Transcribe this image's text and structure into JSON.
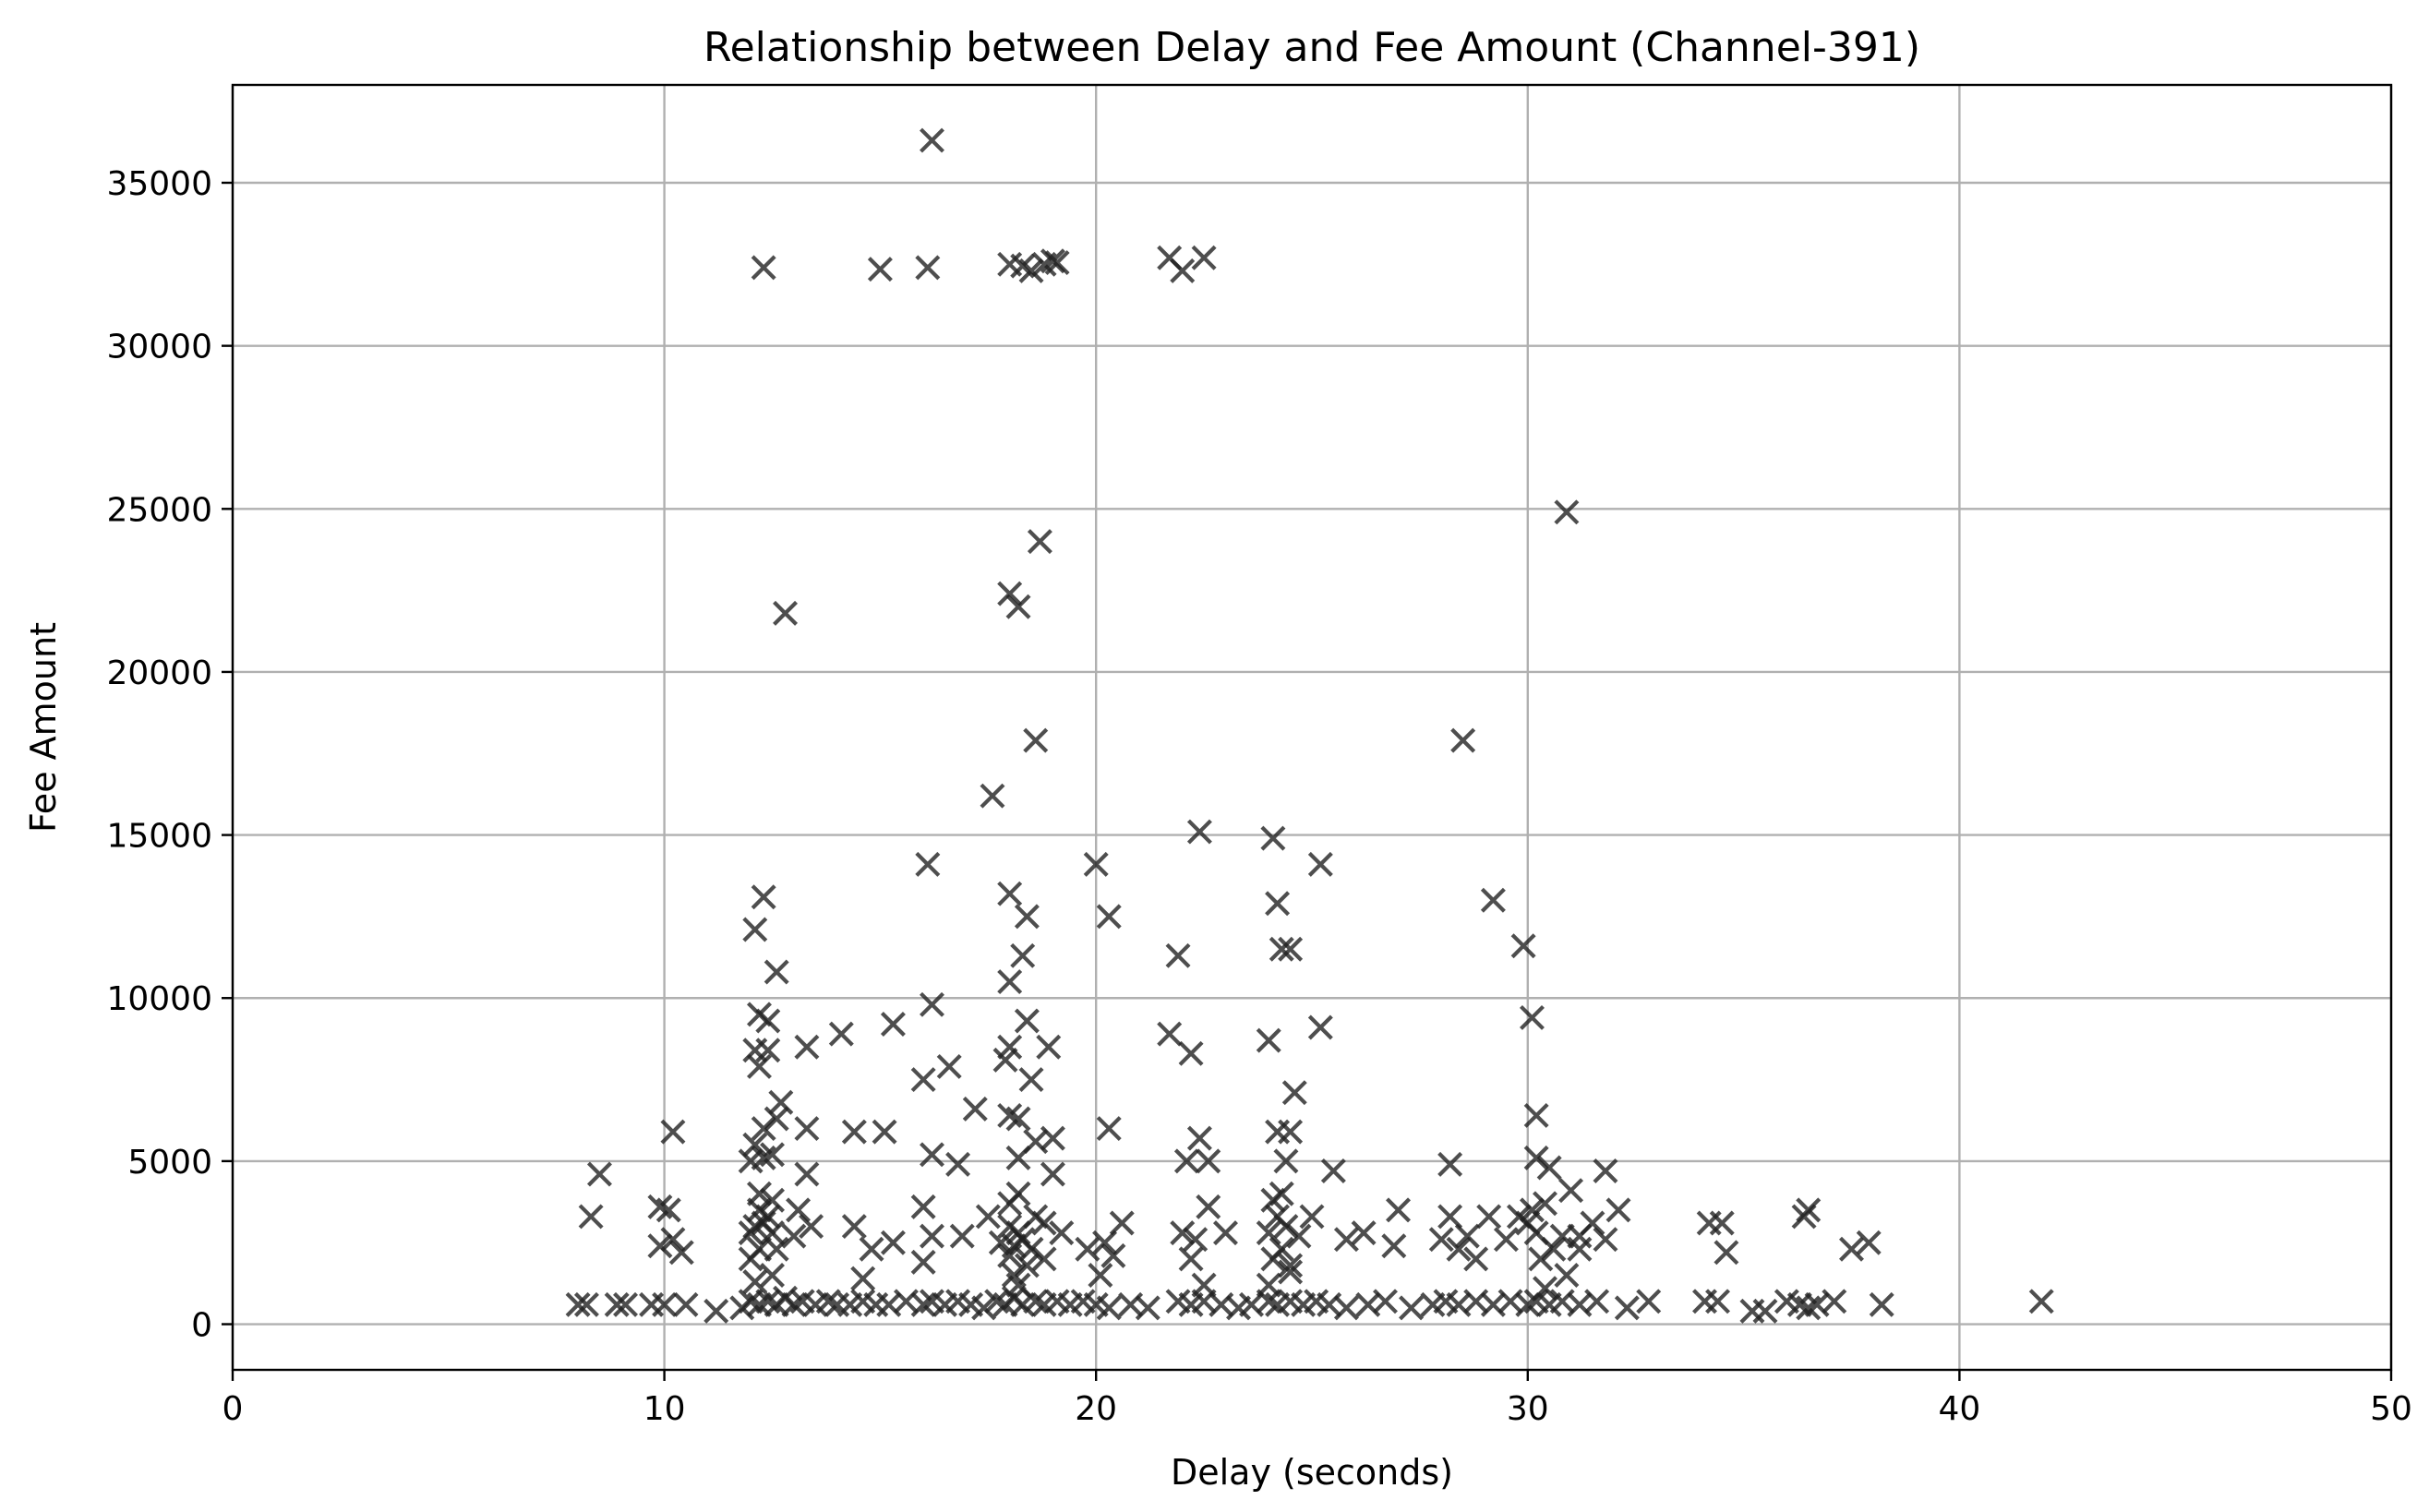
{
  "chart_data": {
    "type": "scatter",
    "title": "Relationship between Delay and Fee Amount (Channel-391)",
    "xlabel": "Delay (seconds)",
    "ylabel": "Fee Amount",
    "xlim": [
      0,
      50
    ],
    "ylim": [
      -1400,
      38000
    ],
    "xticks": [
      0,
      10,
      20,
      30,
      40,
      50
    ],
    "yticks": [
      0,
      5000,
      10000,
      15000,
      20000,
      25000,
      30000,
      35000
    ],
    "xtick_labels": [
      "0",
      "10",
      "20",
      "30",
      "40",
      "50"
    ],
    "ytick_labels": [
      "0",
      "5000",
      "10000",
      "15000",
      "20000",
      "25000",
      "30000",
      "35000"
    ],
    "grid": true,
    "marker": "x",
    "marker_color": "#222222",
    "series": [
      {
        "points": [
          [
            16.2,
            36300
          ],
          [
            12.3,
            32400
          ],
          [
            15.0,
            32350
          ],
          [
            16.1,
            32400
          ],
          [
            18.0,
            32500
          ],
          [
            18.3,
            32450
          ],
          [
            18.5,
            32300
          ],
          [
            18.8,
            32500
          ],
          [
            19.0,
            32600
          ],
          [
            19.1,
            32550
          ],
          [
            21.7,
            32700
          ],
          [
            22.0,
            32300
          ],
          [
            22.5,
            32700
          ],
          [
            30.9,
            24900
          ],
          [
            18.7,
            24000
          ],
          [
            18.0,
            22400
          ],
          [
            18.2,
            22000
          ],
          [
            12.8,
            21800
          ],
          [
            28.5,
            17900
          ],
          [
            18.6,
            17900
          ],
          [
            17.6,
            16200
          ],
          [
            22.4,
            15100
          ],
          [
            24.1,
            14900
          ],
          [
            25.2,
            14100
          ],
          [
            16.1,
            14100
          ],
          [
            20.0,
            14100
          ],
          [
            12.3,
            13100
          ],
          [
            18.0,
            13200
          ],
          [
            29.2,
            13000
          ],
          [
            24.2,
            12900
          ],
          [
            18.4,
            12500
          ],
          [
            20.3,
            12500
          ],
          [
            12.1,
            12100
          ],
          [
            29.9,
            11600
          ],
          [
            24.3,
            11500
          ],
          [
            24.5,
            11500
          ],
          [
            18.3,
            11300
          ],
          [
            21.9,
            11300
          ],
          [
            12.6,
            10800
          ],
          [
            18.0,
            10500
          ],
          [
            16.2,
            9800
          ],
          [
            12.2,
            9500
          ],
          [
            12.4,
            9300
          ],
          [
            30.1,
            9400
          ],
          [
            25.2,
            9100
          ],
          [
            15.3,
            9200
          ],
          [
            18.4,
            9300
          ],
          [
            14.1,
            8900
          ],
          [
            21.7,
            8900
          ],
          [
            24.0,
            8700
          ],
          [
            12.1,
            8400
          ],
          [
            12.4,
            8400
          ],
          [
            13.3,
            8500
          ],
          [
            18.0,
            8500
          ],
          [
            18.9,
            8500
          ],
          [
            22.2,
            8300
          ],
          [
            12.2,
            7900
          ],
          [
            16.6,
            7900
          ],
          [
            17.9,
            8100
          ],
          [
            16.0,
            7500
          ],
          [
            18.5,
            7500
          ],
          [
            24.6,
            7100
          ],
          [
            12.7,
            6800
          ],
          [
            17.2,
            6600
          ],
          [
            18.0,
            6400
          ],
          [
            18.2,
            6300
          ],
          [
            30.2,
            6400
          ],
          [
            12.6,
            6300
          ],
          [
            12.3,
            6000
          ],
          [
            13.3,
            6000
          ],
          [
            20.3,
            6000
          ],
          [
            24.2,
            5900
          ],
          [
            10.2,
            5900
          ],
          [
            14.4,
            5900
          ],
          [
            15.1,
            5900
          ],
          [
            24.5,
            5900
          ],
          [
            12.1,
            5500
          ],
          [
            18.6,
            5600
          ],
          [
            19.0,
            5700
          ],
          [
            22.4,
            5700
          ],
          [
            16.2,
            5200
          ],
          [
            12.0,
            5000
          ],
          [
            12.3,
            5100
          ],
          [
            12.5,
            5200
          ],
          [
            16.8,
            4900
          ],
          [
            18.2,
            5100
          ],
          [
            22.1,
            5000
          ],
          [
            22.6,
            5000
          ],
          [
            24.4,
            5000
          ],
          [
            28.2,
            4900
          ],
          [
            30.2,
            5100
          ],
          [
            30.5,
            4800
          ],
          [
            25.5,
            4700
          ],
          [
            31.8,
            4700
          ],
          [
            13.3,
            4600
          ],
          [
            8.5,
            4600
          ],
          [
            19.0,
            4600
          ],
          [
            31.0,
            4100
          ],
          [
            12.2,
            4000
          ],
          [
            18.2,
            4000
          ],
          [
            24.3,
            4000
          ],
          [
            9.9,
            3600
          ],
          [
            10.1,
            3500
          ],
          [
            12.5,
            3800
          ],
          [
            24.1,
            3800
          ],
          [
            18.0,
            3700
          ],
          [
            30.4,
            3700
          ],
          [
            12.2,
            3500
          ],
          [
            13.1,
            3500
          ],
          [
            16.0,
            3600
          ],
          [
            22.6,
            3600
          ],
          [
            27.0,
            3500
          ],
          [
            30.1,
            3500
          ],
          [
            32.1,
            3500
          ],
          [
            36.5,
            3500
          ],
          [
            8.3,
            3300
          ],
          [
            12.4,
            3300
          ],
          [
            17.5,
            3300
          ],
          [
            18.6,
            3300
          ],
          [
            24.2,
            3300
          ],
          [
            25.0,
            3300
          ],
          [
            28.2,
            3300
          ],
          [
            29.1,
            3300
          ],
          [
            29.8,
            3300
          ],
          [
            34.2,
            3100
          ],
          [
            34.5,
            3100
          ],
          [
            36.4,
            3300
          ],
          [
            20.6,
            3100
          ],
          [
            12.1,
            3000
          ],
          [
            12.3,
            3100
          ],
          [
            13.4,
            3000
          ],
          [
            14.4,
            3000
          ],
          [
            18.0,
            3000
          ],
          [
            18.8,
            3100
          ],
          [
            24.4,
            3000
          ],
          [
            30.0,
            3100
          ],
          [
            31.5,
            3100
          ],
          [
            26.2,
            2800
          ],
          [
            12.0,
            2800
          ],
          [
            12.5,
            2800
          ],
          [
            13.0,
            2700
          ],
          [
            16.2,
            2700
          ],
          [
            16.9,
            2700
          ],
          [
            18.2,
            2800
          ],
          [
            18.3,
            2600
          ],
          [
            19.2,
            2800
          ],
          [
            22.0,
            2800
          ],
          [
            23.0,
            2800
          ],
          [
            24.0,
            2800
          ],
          [
            24.7,
            2700
          ],
          [
            28.6,
            2700
          ],
          [
            30.2,
            2800
          ],
          [
            30.8,
            2700
          ],
          [
            31.2,
            2700
          ],
          [
            10.2,
            2600
          ],
          [
            15.3,
            2500
          ],
          [
            17.8,
            2500
          ],
          [
            18.1,
            2400
          ],
          [
            20.2,
            2500
          ],
          [
            22.3,
            2600
          ],
          [
            25.8,
            2600
          ],
          [
            28.0,
            2600
          ],
          [
            29.5,
            2600
          ],
          [
            31.8,
            2600
          ],
          [
            37.9,
            2500
          ],
          [
            9.9,
            2400
          ],
          [
            12.2,
            2300
          ],
          [
            12.6,
            2300
          ],
          [
            14.8,
            2300
          ],
          [
            18.5,
            2300
          ],
          [
            19.8,
            2300
          ],
          [
            24.3,
            2300
          ],
          [
            26.9,
            2400
          ],
          [
            28.4,
            2300
          ],
          [
            30.6,
            2300
          ],
          [
            31.2,
            2300
          ],
          [
            34.6,
            2200
          ],
          [
            37.5,
            2300
          ],
          [
            10.4,
            2200
          ],
          [
            12.0,
            2000
          ],
          [
            18.0,
            2100
          ],
          [
            18.8,
            2000
          ],
          [
            20.4,
            2100
          ],
          [
            22.2,
            2000
          ],
          [
            24.1,
            2000
          ],
          [
            28.8,
            2000
          ],
          [
            30.3,
            2000
          ],
          [
            16.0,
            1900
          ],
          [
            18.4,
            1800
          ],
          [
            24.5,
            1800
          ],
          [
            12.5,
            1500
          ],
          [
            14.6,
            1400
          ],
          [
            18.1,
            1500
          ],
          [
            20.1,
            1500
          ],
          [
            24.5,
            1600
          ],
          [
            30.9,
            1500
          ],
          [
            12.1,
            1300
          ],
          [
            18.2,
            1200
          ],
          [
            22.5,
            1200
          ],
          [
            24.0,
            1200
          ],
          [
            30.4,
            1100
          ],
          [
            8.0,
            600
          ],
          [
            8.2,
            600
          ],
          [
            8.9,
            600
          ],
          [
            9.1,
            600
          ],
          [
            9.7,
            600
          ],
          [
            10.0,
            600
          ],
          [
            10.5,
            600
          ],
          [
            11.2,
            400
          ],
          [
            11.8,
            500
          ],
          [
            12.0,
            700
          ],
          [
            12.2,
            600
          ],
          [
            12.4,
            700
          ],
          [
            12.6,
            600
          ],
          [
            12.8,
            800
          ],
          [
            13.0,
            600
          ],
          [
            13.2,
            700
          ],
          [
            13.5,
            600
          ],
          [
            13.8,
            700
          ],
          [
            14.0,
            600
          ],
          [
            14.3,
            600
          ],
          [
            14.6,
            700
          ],
          [
            14.9,
            600
          ],
          [
            15.2,
            600
          ],
          [
            15.6,
            700
          ],
          [
            16.0,
            600
          ],
          [
            16.2,
            700
          ],
          [
            16.5,
            600
          ],
          [
            16.8,
            700
          ],
          [
            17.1,
            600
          ],
          [
            17.4,
            500
          ],
          [
            17.7,
            700
          ],
          [
            17.9,
            600
          ],
          [
            18.1,
            800
          ],
          [
            18.3,
            600
          ],
          [
            18.6,
            700
          ],
          [
            18.8,
            600
          ],
          [
            19.1,
            700
          ],
          [
            19.4,
            600
          ],
          [
            19.7,
            700
          ],
          [
            20.0,
            600
          ],
          [
            20.3,
            500
          ],
          [
            20.8,
            600
          ],
          [
            21.2,
            500
          ],
          [
            21.9,
            700
          ],
          [
            22.2,
            600
          ],
          [
            22.5,
            700
          ],
          [
            22.9,
            600
          ],
          [
            23.3,
            500
          ],
          [
            23.6,
            600
          ],
          [
            24.0,
            700
          ],
          [
            24.2,
            600
          ],
          [
            24.5,
            700
          ],
          [
            24.8,
            600
          ],
          [
            25.1,
            700
          ],
          [
            25.4,
            600
          ],
          [
            25.8,
            500
          ],
          [
            26.3,
            600
          ],
          [
            26.7,
            700
          ],
          [
            27.3,
            500
          ],
          [
            27.8,
            600
          ],
          [
            28.1,
            700
          ],
          [
            28.4,
            600
          ],
          [
            28.8,
            700
          ],
          [
            29.2,
            600
          ],
          [
            29.6,
            700
          ],
          [
            30.0,
            600
          ],
          [
            30.2,
            700
          ],
          [
            30.5,
            600
          ],
          [
            30.8,
            700
          ],
          [
            31.2,
            600
          ],
          [
            31.6,
            700
          ],
          [
            32.3,
            500
          ],
          [
            32.8,
            700
          ],
          [
            34.1,
            700
          ],
          [
            34.4,
            700
          ],
          [
            35.2,
            400
          ],
          [
            35.5,
            400
          ],
          [
            36.0,
            700
          ],
          [
            36.3,
            600
          ],
          [
            36.5,
            500
          ],
          [
            36.7,
            600
          ],
          [
            37.1,
            700
          ],
          [
            38.2,
            600
          ],
          [
            41.9,
            700
          ]
        ]
      }
    ]
  }
}
